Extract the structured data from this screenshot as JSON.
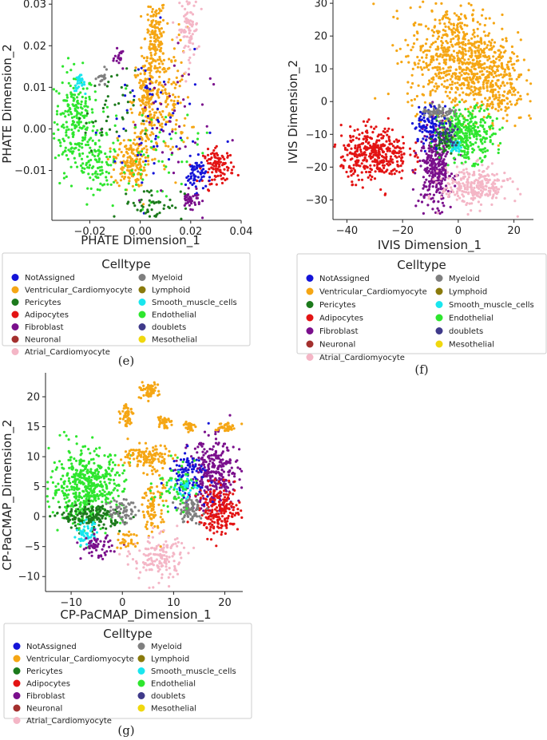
{
  "legend_title": "Celltype",
  "celltypes": [
    {
      "label": "NotAssigned",
      "color": "#1414d8"
    },
    {
      "label": "Ventricular_Cardiomyocyte",
      "color": "#f5a614"
    },
    {
      "label": "Pericytes",
      "color": "#1c7a1c"
    },
    {
      "label": "Adipocytes",
      "color": "#e31414"
    },
    {
      "label": "Fibroblast",
      "color": "#7a0f8c"
    },
    {
      "label": "Neuronal",
      "color": "#a3302e"
    },
    {
      "label": "Atrial_Cardiomyocyte",
      "color": "#f4b6c6"
    },
    {
      "label": "Myeloid",
      "color": "#7f7f7f"
    },
    {
      "label": "Lymphoid",
      "color": "#8a7a0c"
    },
    {
      "label": "Smooth_muscle_cells",
      "color": "#19e6ee"
    },
    {
      "label": "Endothelial",
      "color": "#2ee62e"
    },
    {
      "label": "doublets",
      "color": "#3f3a8a"
    },
    {
      "label": "Mesothelial",
      "color": "#f0d80e"
    }
  ],
  "chart_data": [
    {
      "type": "scatter",
      "panel": "(e)",
      "title": "",
      "xlabel": "PHATE Dimension_1",
      "ylabel": "PHATE Dimension_2",
      "xlim": [
        -0.035,
        0.04
      ],
      "ylim": [
        -0.022,
        0.031
      ],
      "xticks": [
        -0.02,
        0.0,
        0.02,
        0.04
      ],
      "xtick_labels": [
        "−0.02",
        "0.00",
        "0.02",
        "0.04"
      ],
      "yticks": [
        -0.01,
        0.0,
        0.01,
        0.02,
        0.03
      ],
      "ytick_labels": [
        "−0.01",
        "0.00",
        "0.01",
        "0.02",
        "0.03"
      ],
      "clusters": [
        {
          "celltype": "Endothelial",
          "cx": -0.026,
          "cy": 0.002,
          "sx": 0.004,
          "sy": 0.006,
          "n": 220
        },
        {
          "celltype": "Endothelial",
          "cx": -0.017,
          "cy": -0.008,
          "sx": 0.004,
          "sy": 0.003,
          "n": 90
        },
        {
          "celltype": "Smooth_muscle_cells",
          "cx": -0.024,
          "cy": 0.011,
          "sx": 0.001,
          "sy": 0.001,
          "n": 30
        },
        {
          "celltype": "Ventricular_Cardiomyocyte",
          "cx": 0.006,
          "cy": 0.022,
          "sx": 0.002,
          "sy": 0.005,
          "n": 140
        },
        {
          "celltype": "Ventricular_Cardiomyocyte",
          "cx": 0.003,
          "cy": 0.006,
          "sx": 0.003,
          "sy": 0.006,
          "n": 200
        },
        {
          "celltype": "Ventricular_Cardiomyocyte",
          "cx": -0.004,
          "cy": -0.008,
          "sx": 0.003,
          "sy": 0.003,
          "n": 160
        },
        {
          "celltype": "Ventricular_Cardiomyocyte",
          "cx": 0.012,
          "cy": 0.008,
          "sx": 0.004,
          "sy": 0.008,
          "n": 120
        },
        {
          "celltype": "Atrial_Cardiomyocyte",
          "cx": 0.019,
          "cy": 0.024,
          "sx": 0.002,
          "sy": 0.004,
          "n": 90
        },
        {
          "celltype": "Adipocytes",
          "cx": 0.031,
          "cy": -0.009,
          "sx": 0.003,
          "sy": 0.002,
          "n": 110
        },
        {
          "celltype": "NotAssigned",
          "cx": 0.022,
          "cy": -0.011,
          "sx": 0.002,
          "sy": 0.002,
          "n": 60
        },
        {
          "celltype": "Fibroblast",
          "cx": 0.02,
          "cy": -0.017,
          "sx": 0.002,
          "sy": 0.001,
          "n": 40
        },
        {
          "celltype": "Fibroblast",
          "cx": -0.008,
          "cy": 0.017,
          "sx": 0.001,
          "sy": 0.001,
          "n": 20
        },
        {
          "celltype": "Myeloid",
          "cx": -0.015,
          "cy": 0.012,
          "sx": 0.001,
          "sy": 0.001,
          "n": 20
        },
        {
          "celltype": "NotAssigned",
          "cx": 0.005,
          "cy": 0.001,
          "sx": 0.01,
          "sy": 0.01,
          "n": 60
        },
        {
          "celltype": "Endothelial",
          "cx": 0.0,
          "cy": -0.006,
          "sx": 0.012,
          "sy": 0.006,
          "n": 70
        },
        {
          "celltype": "Pericytes",
          "cx": 0.005,
          "cy": -0.018,
          "sx": 0.006,
          "sy": 0.002,
          "n": 50
        },
        {
          "celltype": "Fibroblast",
          "cx": 0.008,
          "cy": 0.0,
          "sx": 0.01,
          "sy": 0.01,
          "n": 40
        },
        {
          "celltype": "Pericytes",
          "cx": -0.012,
          "cy": 0.004,
          "sx": 0.005,
          "sy": 0.005,
          "n": 40
        }
      ]
    },
    {
      "type": "scatter",
      "panel": "(f)",
      "title": "",
      "xlabel": "IVIS Dimension_1",
      "ylabel": "IVIS Dimension_2",
      "xlim": [
        -45,
        27
      ],
      "ylim": [
        -36,
        31
      ],
      "xticks": [
        -40,
        -20,
        0,
        20
      ],
      "xtick_labels": [
        "−40",
        "−20",
        "0",
        "20"
      ],
      "yticks": [
        -30,
        -20,
        -10,
        0,
        10,
        20,
        30
      ],
      "ytick_labels": [
        "−30",
        "−20",
        "−10",
        "0",
        "10",
        "20",
        "30"
      ],
      "clusters": [
        {
          "celltype": "Ventricular_Cardiomyocyte",
          "cx": 0,
          "cy": 13,
          "sx": 9,
          "sy": 8,
          "n": 700
        },
        {
          "celltype": "Ventricular_Cardiomyocyte",
          "cx": 14,
          "cy": 5,
          "sx": 5,
          "sy": 6,
          "n": 200
        },
        {
          "celltype": "Adipocytes",
          "cx": -30,
          "cy": -16,
          "sx": 6,
          "sy": 4,
          "n": 380
        },
        {
          "celltype": "Fibroblast",
          "cx": -8,
          "cy": -20,
          "sx": 3,
          "sy": 6,
          "n": 320
        },
        {
          "celltype": "Atrial_Cardiomyocyte",
          "cx": 6,
          "cy": -26,
          "sx": 6,
          "sy": 3,
          "n": 260
        },
        {
          "celltype": "Endothelial",
          "cx": 3,
          "cy": -10,
          "sx": 5,
          "sy": 4,
          "n": 320
        },
        {
          "celltype": "NotAssigned",
          "cx": -10,
          "cy": -7,
          "sx": 3,
          "sy": 3,
          "n": 100
        },
        {
          "celltype": "Myeloid",
          "cx": -7,
          "cy": -3,
          "sx": 3,
          "sy": 1,
          "n": 60
        },
        {
          "celltype": "Smooth_muscle_cells",
          "cx": -1,
          "cy": -14,
          "sx": 1,
          "sy": 1,
          "n": 30
        },
        {
          "celltype": "Pericytes",
          "cx": -5,
          "cy": -12,
          "sx": 2,
          "sy": 2,
          "n": 40
        },
        {
          "celltype": "doublets",
          "cx": -4,
          "cy": -9,
          "sx": 2,
          "sy": 2,
          "n": 30
        }
      ]
    },
    {
      "type": "scatter",
      "panel": "(g)",
      "title": "",
      "xlabel": "CP-PaCMAP_Dimension_1",
      "ylabel": "CP-PaCMAP_Dimension_2",
      "xlim": [
        -15,
        23.5
      ],
      "ylim": [
        -12.5,
        24
      ],
      "xticks": [
        -10,
        0,
        10,
        20
      ],
      "xtick_labels": [
        "−10",
        "0",
        "10",
        "20"
      ],
      "yticks": [
        -10,
        -5,
        0,
        5,
        10,
        15,
        20
      ],
      "ytick_labels": [
        "−10",
        "−5",
        "0",
        "5",
        "10",
        "15",
        "20"
      ],
      "clusters": [
        {
          "celltype": "Endothelial",
          "cx": -7,
          "cy": 5,
          "sx": 3.5,
          "sy": 3,
          "n": 500
        },
        {
          "celltype": "Pericytes",
          "cx": -6,
          "cy": 0,
          "sx": 3,
          "sy": 1,
          "n": 170
        },
        {
          "celltype": "Smooth_muscle_cells",
          "cx": -7,
          "cy": -3,
          "sx": 1,
          "sy": 1,
          "n": 50
        },
        {
          "celltype": "Fibroblast",
          "cx": -5,
          "cy": -5,
          "sx": 1.5,
          "sy": 1,
          "n": 60
        },
        {
          "celltype": "Fibroblast",
          "cx": 18,
          "cy": 7,
          "sx": 2.5,
          "sy": 3,
          "n": 300
        },
        {
          "celltype": "Adipocytes",
          "cx": 19,
          "cy": 1,
          "sx": 2,
          "sy": 2,
          "n": 220
        },
        {
          "celltype": "Ventricular_Cardiomyocyte",
          "cx": 5,
          "cy": 21,
          "sx": 1,
          "sy": 0.6,
          "n": 60
        },
        {
          "celltype": "Ventricular_Cardiomyocyte",
          "cx": 1,
          "cy": 17,
          "sx": 0.6,
          "sy": 1,
          "n": 50
        },
        {
          "celltype": "Ventricular_Cardiomyocyte",
          "cx": 8,
          "cy": 16,
          "sx": 0.6,
          "sy": 0.6,
          "n": 40
        },
        {
          "celltype": "Ventricular_Cardiomyocyte",
          "cx": 20,
          "cy": 15,
          "sx": 1,
          "sy": 0.4,
          "n": 40
        },
        {
          "celltype": "Ventricular_Cardiomyocyte",
          "cx": 13,
          "cy": 15,
          "sx": 0.5,
          "sy": 0.5,
          "n": 30
        },
        {
          "celltype": "Ventricular_Cardiomyocyte",
          "cx": 5,
          "cy": 10,
          "sx": 2.5,
          "sy": 1,
          "n": 120
        },
        {
          "celltype": "Ventricular_Cardiomyocyte",
          "cx": 6,
          "cy": 2,
          "sx": 1,
          "sy": 2.5,
          "n": 100
        },
        {
          "celltype": "Atrial_Cardiomyocyte",
          "cx": 7,
          "cy": -7,
          "sx": 2.5,
          "sy": 2,
          "n": 150
        },
        {
          "celltype": "NotAssigned",
          "cx": 13,
          "cy": 7,
          "sx": 2,
          "sy": 2,
          "n": 100
        },
        {
          "celltype": "Smooth_muscle_cells",
          "cx": 12,
          "cy": 5,
          "sx": 1,
          "sy": 1,
          "n": 40
        },
        {
          "celltype": "Myeloid",
          "cx": 13,
          "cy": 1,
          "sx": 1.3,
          "sy": 1,
          "n": 80
        },
        {
          "celltype": "Myeloid",
          "cx": 0,
          "cy": 1,
          "sx": 1.3,
          "sy": 1,
          "n": 60
        },
        {
          "celltype": "Endothelial",
          "cx": 10,
          "cy": 5,
          "sx": 2,
          "sy": 2,
          "n": 60
        },
        {
          "celltype": "Ventricular_Cardiomyocyte",
          "cx": 1,
          "cy": -4,
          "sx": 1,
          "sy": 1,
          "n": 30
        }
      ]
    }
  ]
}
